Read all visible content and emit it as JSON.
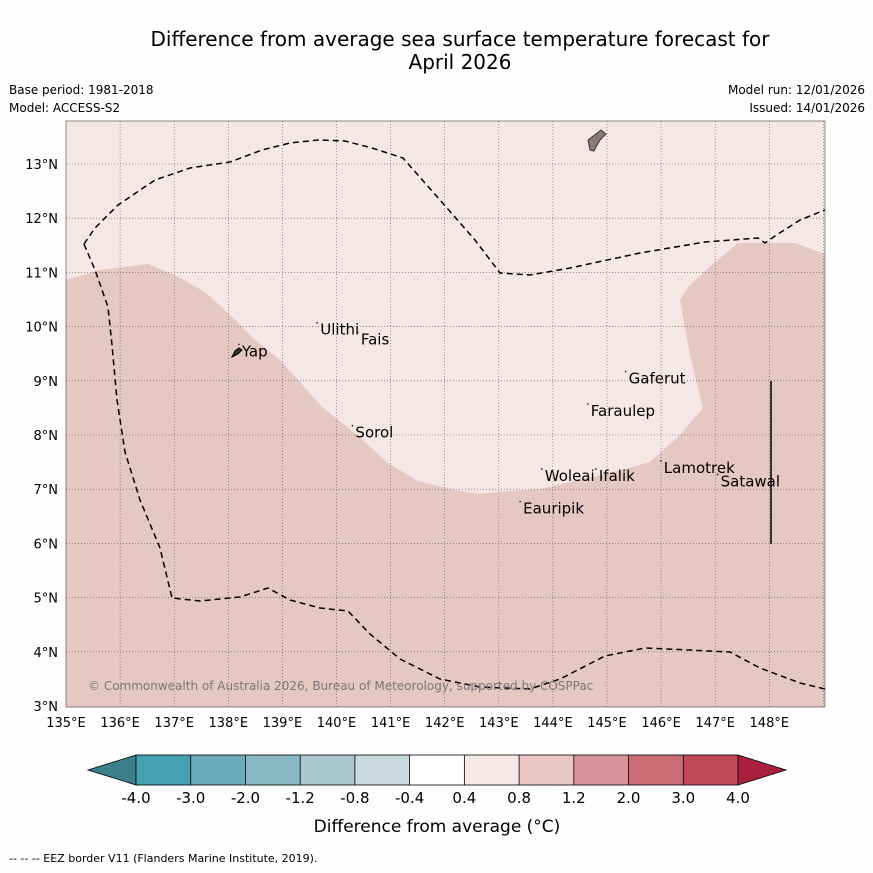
{
  "header": {
    "title_line1": "Difference from average sea surface temperature forecast for",
    "title_line2": "April 2026",
    "base_period": "Base period: 1981-2018",
    "model": "Model: ACCESS-S2",
    "model_run": "Model run: 12/01/2026",
    "issued": "Issued: 14/01/2026"
  },
  "map": {
    "lon_labels": [
      "135°E",
      "136°E",
      "137°E",
      "138°E",
      "139°E",
      "140°E",
      "141°E",
      "142°E",
      "143°E",
      "144°E",
      "145°E",
      "146°E",
      "147°E",
      "148°E"
    ],
    "lat_labels": [
      "3°N",
      "4°N",
      "5°N",
      "6°N",
      "7°N",
      "8°N",
      "9°N",
      "10°N",
      "11°N",
      "12°N",
      "13°N"
    ],
    "places": [
      {
        "name": "Ulithi",
        "lon": 139.7,
        "lat": 9.85
      },
      {
        "name": "Fais",
        "lon": 140.45,
        "lat": 9.67
      },
      {
        "name": "Yap",
        "lon": 138.25,
        "lat": 9.45
      },
      {
        "name": "Gaferut",
        "lon": 145.4,
        "lat": 8.95
      },
      {
        "name": "Faraulep",
        "lon": 144.7,
        "lat": 8.35
      },
      {
        "name": "Sorol",
        "lon": 140.35,
        "lat": 7.95
      },
      {
        "name": "Woleai",
        "lon": 143.85,
        "lat": 7.15
      },
      {
        "name": "Ifalik",
        "lon": 144.85,
        "lat": 7.15
      },
      {
        "name": "Lamotrek",
        "lon": 146.05,
        "lat": 7.3
      },
      {
        "name": "Satawal",
        "lon": 147.1,
        "lat": 7.05
      },
      {
        "name": "Eauripik",
        "lon": 143.45,
        "lat": 6.55
      }
    ],
    "copyright": "© Commonwealth of Australia 2026, Bureau of Meteorology, supported by COSPPac"
  },
  "colorbar": {
    "ticks": [
      "-4.0",
      "-3.0",
      "-2.0",
      "-1.2",
      "-0.8",
      "-0.4",
      "0.4",
      "0.8",
      "1.2",
      "2.0",
      "3.0",
      "4.0"
    ],
    "colors": [
      "#44a2b2",
      "#6aacba",
      "#88b8c3",
      "#a9c8ce",
      "#c7d9dd",
      "#ffffff",
      "#f5e8e6",
      "#e8c7c2",
      "#d89398",
      "#cc6d76",
      "#c14858"
    ],
    "under_color": "#3b7f8a",
    "over_color": "#a8203c",
    "label": "Difference from average (°C)"
  },
  "legend": {
    "eez": "--  --  -- EEZ border V11 (Flanders Marine Institute, 2019)."
  }
}
